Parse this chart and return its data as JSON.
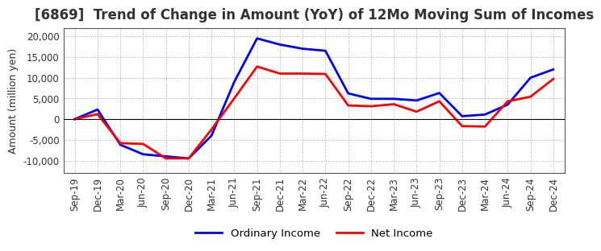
{
  "title": "[6869]  Trend of Change in Amount (YoY) of 12Mo Moving Sum of Incomes",
  "ylabel": "Amount (million yen)",
  "x_labels": [
    "Sep-19",
    "Dec-19",
    "Mar-20",
    "Jun-20",
    "Sep-20",
    "Dec-20",
    "Mar-21",
    "Jun-21",
    "Sep-21",
    "Dec-21",
    "Mar-22",
    "Jun-22",
    "Sep-22",
    "Dec-22",
    "Mar-23",
    "Jun-23",
    "Sep-23",
    "Dec-23",
    "Mar-24",
    "Jun-24",
    "Sep-24",
    "Dec-24"
  ],
  "ordinary_income": [
    0,
    2300,
    -6200,
    -8500,
    -9000,
    -9500,
    -4000,
    9000,
    19500,
    18000,
    17000,
    16500,
    6200,
    4900,
    4900,
    4500,
    6300,
    700,
    1100,
    3500,
    10000,
    12000
  ],
  "net_income": [
    0,
    1200,
    -5800,
    -6000,
    -9500,
    -9500,
    -2500,
    5000,
    12700,
    11000,
    11000,
    10900,
    3300,
    3100,
    3600,
    1800,
    4300,
    -1700,
    -1800,
    4300,
    5400,
    9700
  ],
  "ordinary_color": "#0000FF",
  "net_color": "#FF0000",
  "ylim": [
    -13000,
    22000
  ],
  "yticks": [
    -10000,
    -5000,
    0,
    5000,
    10000,
    15000,
    20000
  ],
  "background_color": "#FFFFFF",
  "grid_color": "#AAAAAA",
  "legend_ordinary": "Ordinary Income",
  "legend_net": "Net Income",
  "title_fontsize": 12,
  "title_color": "#333333",
  "axis_fontsize": 9,
  "tick_fontsize": 8.5,
  "legend_fontsize": 9.5
}
